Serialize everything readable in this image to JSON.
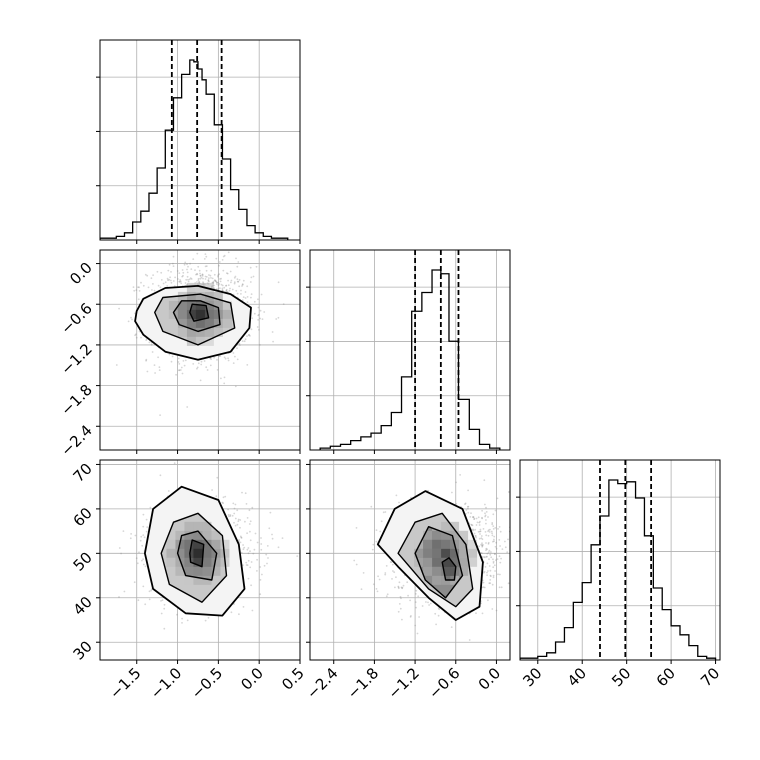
{
  "chart_data": {
    "type": "corner",
    "grid": true,
    "parameters": [
      {
        "index": 0,
        "range": [
          -1.95,
          0.5
        ],
        "ticks": [
          -1.5,
          -1.0,
          -0.5,
          0.0,
          0.5
        ],
        "tick_labels": [
          "−1.5",
          "−1.0",
          "−0.5",
          "0.0",
          "0.5"
        ]
      },
      {
        "index": 1,
        "range": [
          -2.75,
          0.2
        ],
        "ticks": [
          -2.4,
          -1.8,
          -1.2,
          -0.6,
          0.0
        ],
        "tick_labels": [
          "−2.4",
          "−1.8",
          "−1.2",
          "−0.6",
          "0.0"
        ]
      },
      {
        "index": 2,
        "range": [
          26,
          71
        ],
        "ticks": [
          30,
          40,
          50,
          60,
          70
        ],
        "tick_labels": [
          "30",
          "40",
          "50",
          "60",
          "70"
        ]
      }
    ],
    "histograms": [
      {
        "param": 0,
        "quantiles": [
          -1.07,
          -0.76,
          -0.46
        ],
        "bin_edges": [
          -1.95,
          -1.85,
          -1.75,
          -1.65,
          -1.55,
          -1.45,
          -1.35,
          -1.25,
          -1.15,
          -1.05,
          -0.95,
          -0.85,
          -0.8,
          -0.75,
          -0.7,
          -0.65,
          -0.55,
          -0.45,
          -0.35,
          -0.25,
          -0.15,
          -0.05,
          0.05,
          0.15,
          0.25,
          0.35
        ],
        "counts": [
          1,
          1,
          2,
          4,
          10,
          16,
          26,
          40,
          61,
          79,
          92,
          100,
          99,
          95,
          89,
          81,
          64,
          45,
          28,
          17,
          8,
          4,
          2,
          1,
          1
        ]
      },
      {
        "param": 1,
        "quantiles": [
          -1.2,
          -0.82,
          -0.56
        ],
        "bin_edges": [
          -2.6,
          -2.45,
          -2.3,
          -2.15,
          -2.0,
          -1.85,
          -1.7,
          -1.55,
          -1.4,
          -1.25,
          -1.1,
          -0.95,
          -0.82,
          -0.7,
          -0.56,
          -0.4,
          -0.25,
          -0.1,
          0.05
        ],
        "counts": [
          1,
          2,
          3,
          5,
          7,
          9,
          13,
          20,
          39,
          74,
          84,
          96,
          94,
          58,
          27,
          11,
          3,
          1
        ]
      },
      {
        "param": 2,
        "quantiles": [
          44,
          49.7,
          55.5
        ],
        "bin_edges": [
          26,
          28,
          30,
          32,
          34,
          36,
          38,
          40,
          42,
          44,
          46,
          48,
          50,
          52,
          54,
          56,
          58,
          60,
          62,
          64,
          66,
          68,
          70
        ],
        "counts": [
          1,
          1,
          2,
          4,
          10,
          18,
          32,
          43,
          64,
          80,
          100,
          98,
          99,
          90,
          69,
          40,
          28,
          19,
          14,
          8,
          2,
          1
        ]
      }
    ],
    "scatters": [
      {
        "x_param": 0,
        "y_param": 1,
        "center": [
          -0.72,
          -0.75
        ],
        "levels": [
          [
            [
              -1.5,
              -0.7
            ],
            [
              -1.42,
              -0.52
            ],
            [
              -1.15,
              -0.36
            ],
            [
              -0.75,
              -0.33
            ],
            [
              -0.35,
              -0.45
            ],
            [
              -0.1,
              -0.65
            ],
            [
              -0.12,
              -0.95
            ],
            [
              -0.35,
              -1.3
            ],
            [
              -0.75,
              -1.42
            ],
            [
              -1.15,
              -1.3
            ],
            [
              -1.42,
              -1.05
            ],
            [
              -1.52,
              -0.85
            ]
          ],
          [
            [
              -1.28,
              -0.72
            ],
            [
              -1.18,
              -0.5
            ],
            [
              -0.72,
              -0.45
            ],
            [
              -0.35,
              -0.58
            ],
            [
              -0.3,
              -0.95
            ],
            [
              -0.75,
              -1.2
            ],
            [
              -1.18,
              -1.0
            ]
          ],
          [
            [
              -1.05,
              -0.72
            ],
            [
              -0.95,
              -0.55
            ],
            [
              -0.72,
              -0.55
            ],
            [
              -0.5,
              -0.65
            ],
            [
              -0.48,
              -0.9
            ],
            [
              -0.75,
              -1.0
            ],
            [
              -0.98,
              -0.9
            ]
          ],
          [
            [
              -0.85,
              -0.72
            ],
            [
              -0.82,
              -0.6
            ],
            [
              -0.65,
              -0.62
            ],
            [
              -0.62,
              -0.8
            ],
            [
              -0.8,
              -0.85
            ]
          ]
        ]
      },
      {
        "x_param": 0,
        "y_param": 2,
        "center": [
          -0.75,
          50
        ],
        "levels": [
          [
            [
              -1.4,
              50
            ],
            [
              -1.3,
              60
            ],
            [
              -0.95,
              65
            ],
            [
              -0.5,
              62
            ],
            [
              -0.25,
              52
            ],
            [
              -0.18,
              42
            ],
            [
              -0.45,
              36
            ],
            [
              -0.9,
              36.5
            ],
            [
              -1.3,
              42
            ]
          ],
          [
            [
              -1.2,
              50
            ],
            [
              -1.05,
              57
            ],
            [
              -0.75,
              59
            ],
            [
              -0.45,
              54
            ],
            [
              -0.4,
              45
            ],
            [
              -0.7,
              39
            ],
            [
              -1.1,
              43
            ]
          ],
          [
            [
              -1.0,
              50
            ],
            [
              -0.95,
              54
            ],
            [
              -0.75,
              55
            ],
            [
              -0.52,
              50
            ],
            [
              -0.58,
              44
            ],
            [
              -0.9,
              45
            ]
          ],
          [
            [
              -0.85,
              50
            ],
            [
              -0.82,
              53
            ],
            [
              -0.68,
              52
            ],
            [
              -0.7,
              47
            ],
            [
              -0.84,
              48
            ]
          ]
        ]
      },
      {
        "x_param": 1,
        "y_param": 2,
        "center": [
          -0.75,
          50
        ],
        "levels": [
          [
            [
              -1.75,
              52
            ],
            [
              -1.5,
              60
            ],
            [
              -1.05,
              64
            ],
            [
              -0.5,
              60
            ],
            [
              -0.2,
              48
            ],
            [
              -0.25,
              38
            ],
            [
              -0.6,
              35
            ],
            [
              -1.0,
              40
            ],
            [
              -1.45,
              47
            ]
          ],
          [
            [
              -1.45,
              50
            ],
            [
              -1.2,
              57
            ],
            [
              -0.8,
              59
            ],
            [
              -0.45,
              52
            ],
            [
              -0.35,
              42
            ],
            [
              -0.6,
              38
            ],
            [
              -1.0,
              42
            ]
          ],
          [
            [
              -1.2,
              50
            ],
            [
              -1.0,
              56
            ],
            [
              -0.65,
              54
            ],
            [
              -0.5,
              45
            ],
            [
              -0.75,
              40
            ],
            [
              -1.05,
              44
            ]
          ],
          [
            [
              -0.8,
              48
            ],
            [
              -0.7,
              49
            ],
            [
              -0.6,
              47
            ],
            [
              -0.62,
              44
            ],
            [
              -0.75,
              44
            ]
          ]
        ]
      }
    ]
  }
}
